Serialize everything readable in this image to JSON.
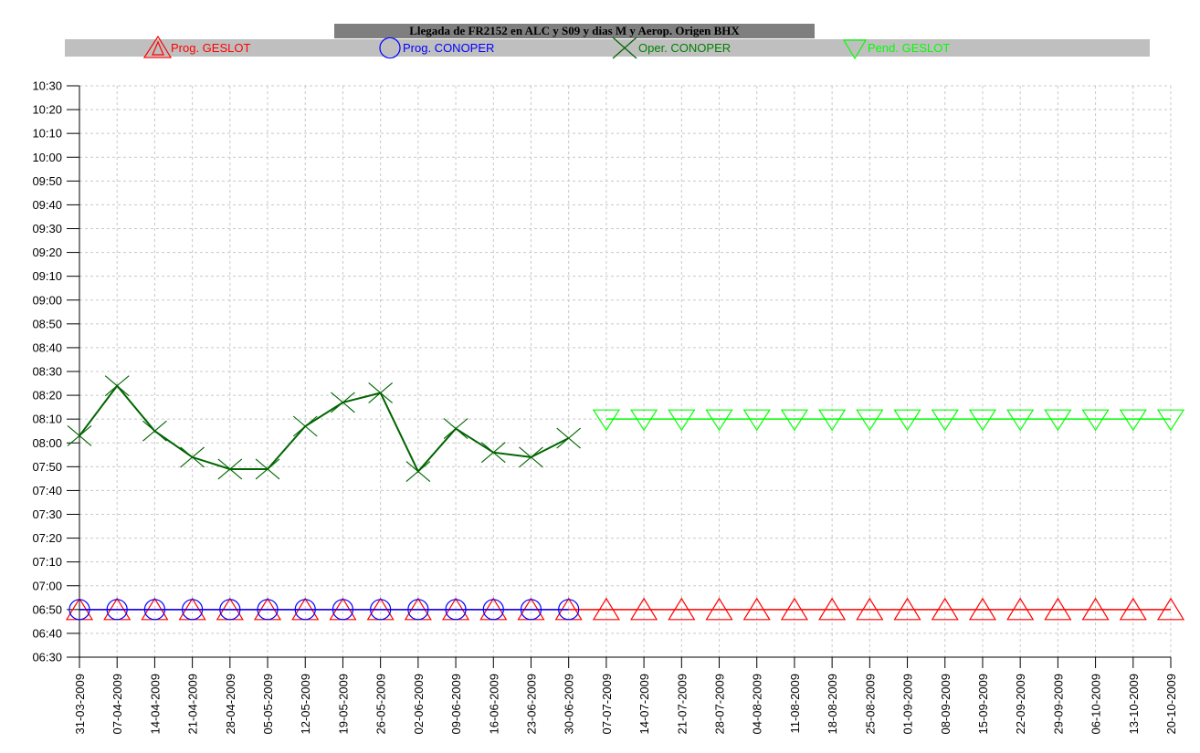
{
  "chart_data": {
    "type": "line",
    "title": "Llegada de FR2152 en ALC y S09 y dias M y Aerop. Origen BHX",
    "xlabel": "",
    "ylabel": "",
    "grid": true,
    "legend_position": "top",
    "y_ticks": [
      "06:30",
      "06:40",
      "06:50",
      "07:00",
      "07:10",
      "07:20",
      "07:30",
      "07:40",
      "07:50",
      "08:00",
      "08:10",
      "08:20",
      "08:30",
      "08:40",
      "08:50",
      "09:00",
      "09:10",
      "09:20",
      "09:30",
      "09:40",
      "09:50",
      "10:00",
      "10:10",
      "10:20",
      "10:30"
    ],
    "ylim": [
      "06:30",
      "10:30"
    ],
    "categories": [
      "31-03-2009",
      "07-04-2009",
      "14-04-2009",
      "21-04-2009",
      "28-04-2009",
      "05-05-2009",
      "12-05-2009",
      "19-05-2009",
      "26-05-2009",
      "02-06-2009",
      "09-06-2009",
      "16-06-2009",
      "23-06-2009",
      "30-06-2009",
      "07-07-2009",
      "14-07-2009",
      "21-07-2009",
      "28-07-2009",
      "04-08-2009",
      "11-08-2009",
      "18-08-2009",
      "25-08-2009",
      "01-09-2009",
      "08-09-2009",
      "15-09-2009",
      "22-09-2009",
      "29-09-2009",
      "06-10-2009",
      "13-10-2009",
      "20-10-2009"
    ],
    "series": [
      {
        "name": "Prog. GESLOT",
        "color": "#ff0000",
        "marker": "triangle-up",
        "values": [
          "06:50",
          "06:50",
          "06:50",
          "06:50",
          "06:50",
          "06:50",
          "06:50",
          "06:50",
          "06:50",
          "06:50",
          "06:50",
          "06:50",
          "06:50",
          "06:50",
          "06:50",
          "06:50",
          "06:50",
          "06:50",
          "06:50",
          "06:50",
          "06:50",
          "06:50",
          "06:50",
          "06:50",
          "06:50",
          "06:50",
          "06:50",
          "06:50",
          "06:50",
          "06:50"
        ]
      },
      {
        "name": "Prog. CONOPER",
        "color": "#0000ff",
        "marker": "circle",
        "values": [
          "06:50",
          "06:50",
          "06:50",
          "06:50",
          "06:50",
          "06:50",
          "06:50",
          "06:50",
          "06:50",
          "06:50",
          "06:50",
          "06:50",
          "06:50",
          "06:50",
          null,
          null,
          null,
          null,
          null,
          null,
          null,
          null,
          null,
          null,
          null,
          null,
          null,
          null,
          null,
          null
        ]
      },
      {
        "name": "Oper. CONOPER",
        "color": "#006400",
        "marker": "x",
        "values": [
          "08:03",
          "08:24",
          "08:05",
          "07:54",
          "07:49",
          "07:49",
          "08:07",
          "08:17",
          "08:21",
          "07:48",
          "08:06",
          "07:56",
          "07:54",
          "08:02",
          null,
          null,
          null,
          null,
          null,
          null,
          null,
          null,
          null,
          null,
          null,
          null,
          null,
          null,
          null,
          null
        ]
      },
      {
        "name": "Pend. GESLOT",
        "color": "#00ff00",
        "marker": "triangle-down",
        "values": [
          null,
          null,
          null,
          null,
          null,
          null,
          null,
          null,
          null,
          null,
          null,
          null,
          null,
          null,
          "08:10",
          "08:10",
          "08:10",
          "08:10",
          "08:10",
          "08:10",
          "08:10",
          "08:10",
          "08:10",
          "08:10",
          "08:10",
          "08:10",
          "08:10",
          "08:10",
          "08:10",
          "08:10"
        ]
      }
    ]
  }
}
